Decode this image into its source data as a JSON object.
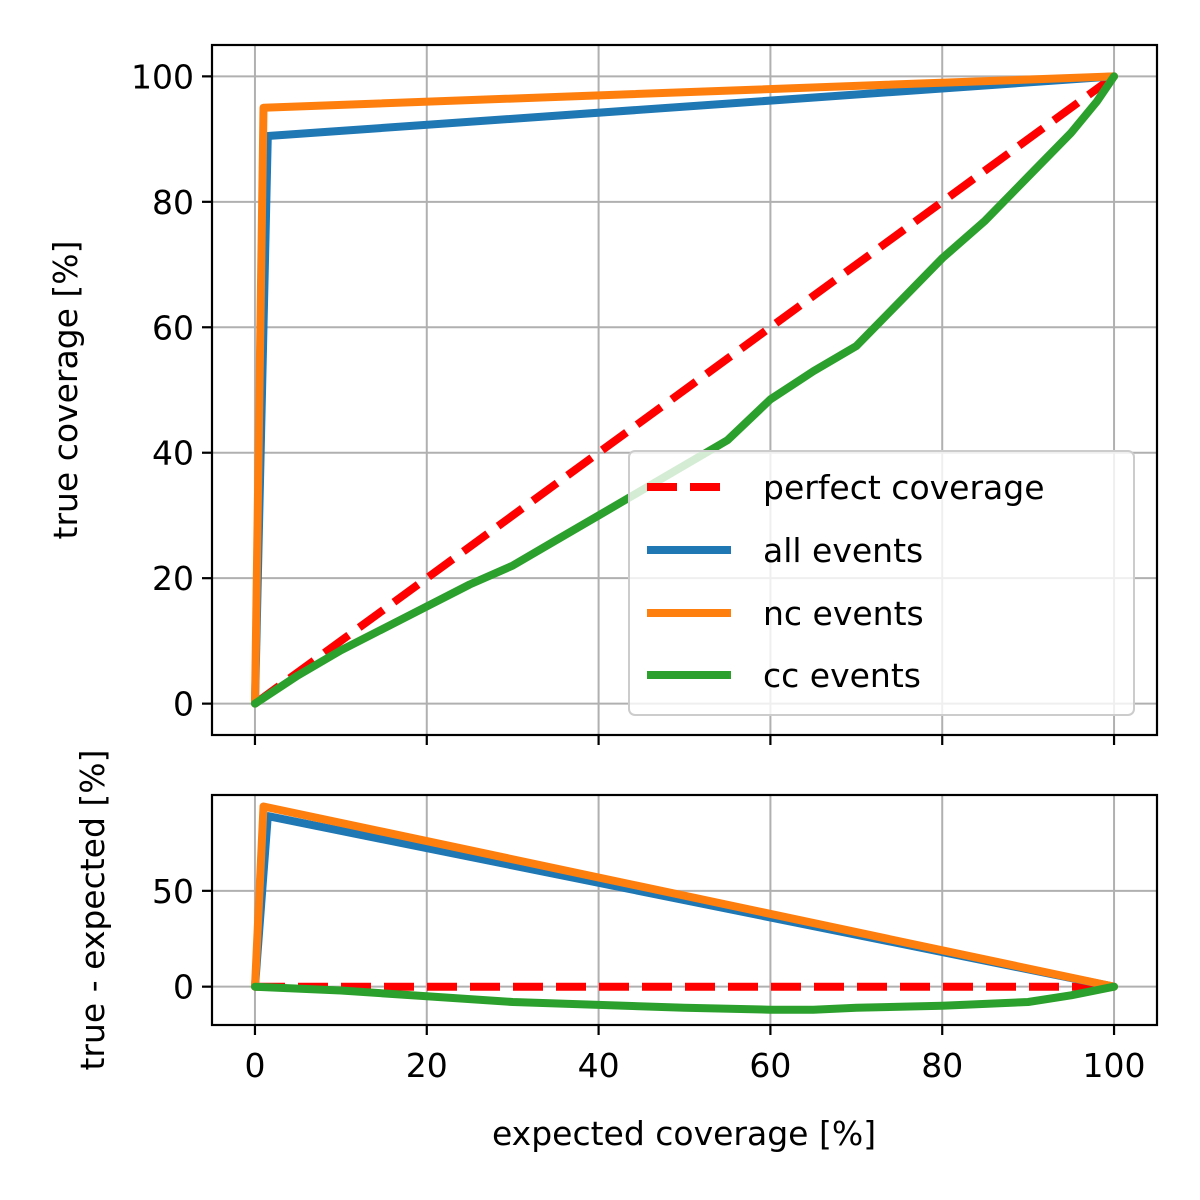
{
  "chart_data": [
    {
      "type": "line",
      "panel": "top",
      "xlabel": "",
      "ylabel": "true coverage [%]",
      "xlim": [
        -5,
        105
      ],
      "ylim": [
        -5,
        105
      ],
      "xticks": [
        0,
        20,
        40,
        60,
        80,
        100
      ],
      "yticks": [
        0,
        20,
        40,
        60,
        80,
        100
      ],
      "xticklabels_visible": false,
      "grid": true,
      "legend": {
        "placement": "lower-right",
        "entries": [
          "perfect coverage",
          "all events",
          "nc events",
          "cc events"
        ]
      },
      "series": [
        {
          "name": "perfect coverage",
          "color": "#ff0000",
          "style": "dashed",
          "x": [
            0,
            100
          ],
          "y": [
            0,
            100
          ]
        },
        {
          "name": "all events",
          "color": "#1f77b4",
          "style": "solid",
          "x": [
            0,
            1.5,
            100
          ],
          "y": [
            0,
            90.5,
            100
          ]
        },
        {
          "name": "nc events",
          "color": "#ff7f0e",
          "style": "solid",
          "x": [
            0,
            1,
            100
          ],
          "y": [
            0,
            95,
            100
          ]
        },
        {
          "name": "cc events",
          "color": "#2ca02c",
          "style": "solid",
          "x": [
            0,
            5,
            10,
            15,
            20,
            25,
            30,
            35,
            40,
            45,
            50,
            55,
            60,
            65,
            70,
            75,
            80,
            85,
            90,
            95,
            98,
            100
          ],
          "y": [
            0,
            4.5,
            8.5,
            12,
            15.5,
            19,
            22,
            26,
            30,
            34,
            38,
            42,
            48.5,
            53,
            57,
            64,
            71,
            77,
            84,
            91,
            96,
            100
          ]
        }
      ]
    },
    {
      "type": "line",
      "panel": "bottom",
      "xlabel": "expected coverage [%]",
      "ylabel": "true - expected [%]",
      "xlim": [
        -5,
        105
      ],
      "ylim": [
        -20,
        100
      ],
      "xticks": [
        0,
        20,
        40,
        60,
        80,
        100
      ],
      "yticks": [
        0,
        50
      ],
      "grid": true,
      "series": [
        {
          "name": "perfect coverage",
          "color": "#ff0000",
          "style": "dashed",
          "x": [
            0,
            100
          ],
          "y": [
            0,
            0
          ]
        },
        {
          "name": "all events",
          "color": "#1f77b4",
          "style": "solid",
          "x": [
            0,
            1.5,
            100
          ],
          "y": [
            0,
            89,
            0
          ]
        },
        {
          "name": "nc events",
          "color": "#ff7f0e",
          "style": "solid",
          "x": [
            0,
            1,
            100
          ],
          "y": [
            0,
            94,
            0
          ]
        },
        {
          "name": "cc events",
          "color": "#2ca02c",
          "style": "solid",
          "x": [
            0,
            10,
            20,
            30,
            40,
            50,
            60,
            65,
            70,
            80,
            90,
            95,
            100
          ],
          "y": [
            0,
            -2,
            -5,
            -8,
            -9.5,
            -11,
            -12,
            -12,
            -11,
            -10,
            -8,
            -4.5,
            0
          ]
        }
      ]
    }
  ]
}
